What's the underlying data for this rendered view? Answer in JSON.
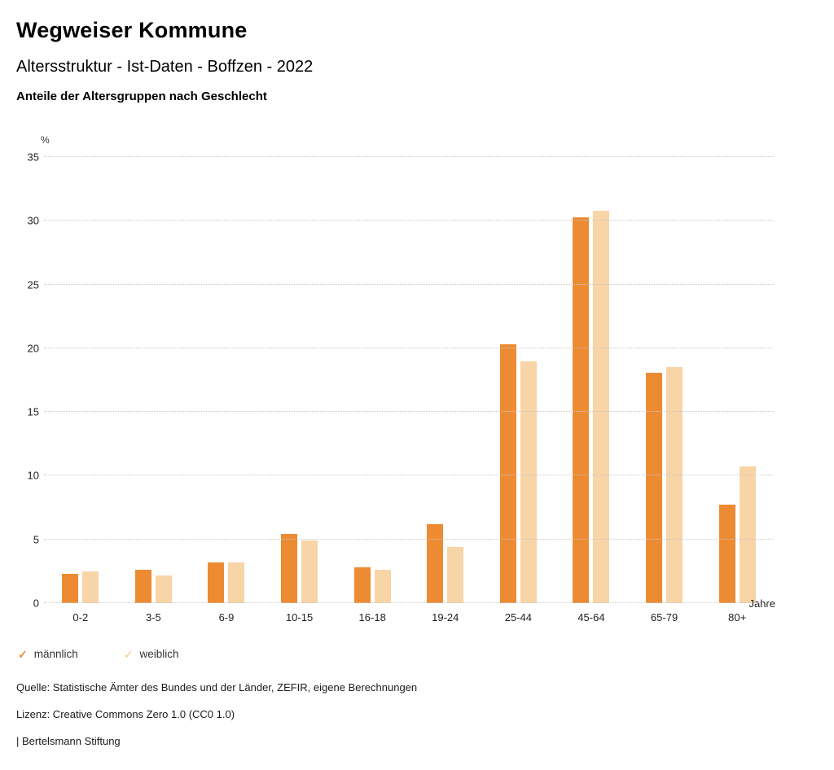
{
  "header": {
    "title": "Wegweiser Kommune",
    "subtitle": "Altersstruktur - Ist-Daten - Boffzen - 2022",
    "description": "Anteile der Altersgruppen nach Geschlecht"
  },
  "chart_data": {
    "type": "bar",
    "title": "Anteile der Altersgruppen nach Geschlecht",
    "y_unit_label": "%",
    "x_unit_label": "Jahre",
    "categories": [
      "0-2",
      "3-5",
      "6-9",
      "10-15",
      "16-18",
      "19-24",
      "25-44",
      "45-64",
      "65-79",
      "80+"
    ],
    "series": [
      {
        "name": "männlich",
        "color": "#ED8B33",
        "values": [
          2.3,
          2.6,
          3.2,
          5.4,
          2.8,
          6.2,
          20.3,
          30.3,
          18.1,
          7.7
        ]
      },
      {
        "name": "weiblich",
        "color": "#F8D5A6",
        "values": [
          2.5,
          2.2,
          3.2,
          4.9,
          2.6,
          4.4,
          19.0,
          30.8,
          18.5,
          10.7
        ]
      }
    ],
    "ylim": [
      0,
      35
    ],
    "yticks": [
      0,
      5,
      10,
      15,
      20,
      25,
      30,
      35
    ],
    "grid": true,
    "legend_position": "bottom"
  },
  "legend": {
    "check_glyph": "✓",
    "items": [
      {
        "label": "männlich",
        "color": "#ED8B33"
      },
      {
        "label": "weiblich",
        "color": "#F8D5A6"
      }
    ]
  },
  "footer": {
    "source": "Quelle: Statistische Ämter des Bundes und der Länder, ZEFIR, eigene Berechnungen",
    "license": "Lizenz: Creative Commons Zero 1.0 (CC0 1.0)",
    "attribution": "| Bertelsmann Stiftung"
  }
}
